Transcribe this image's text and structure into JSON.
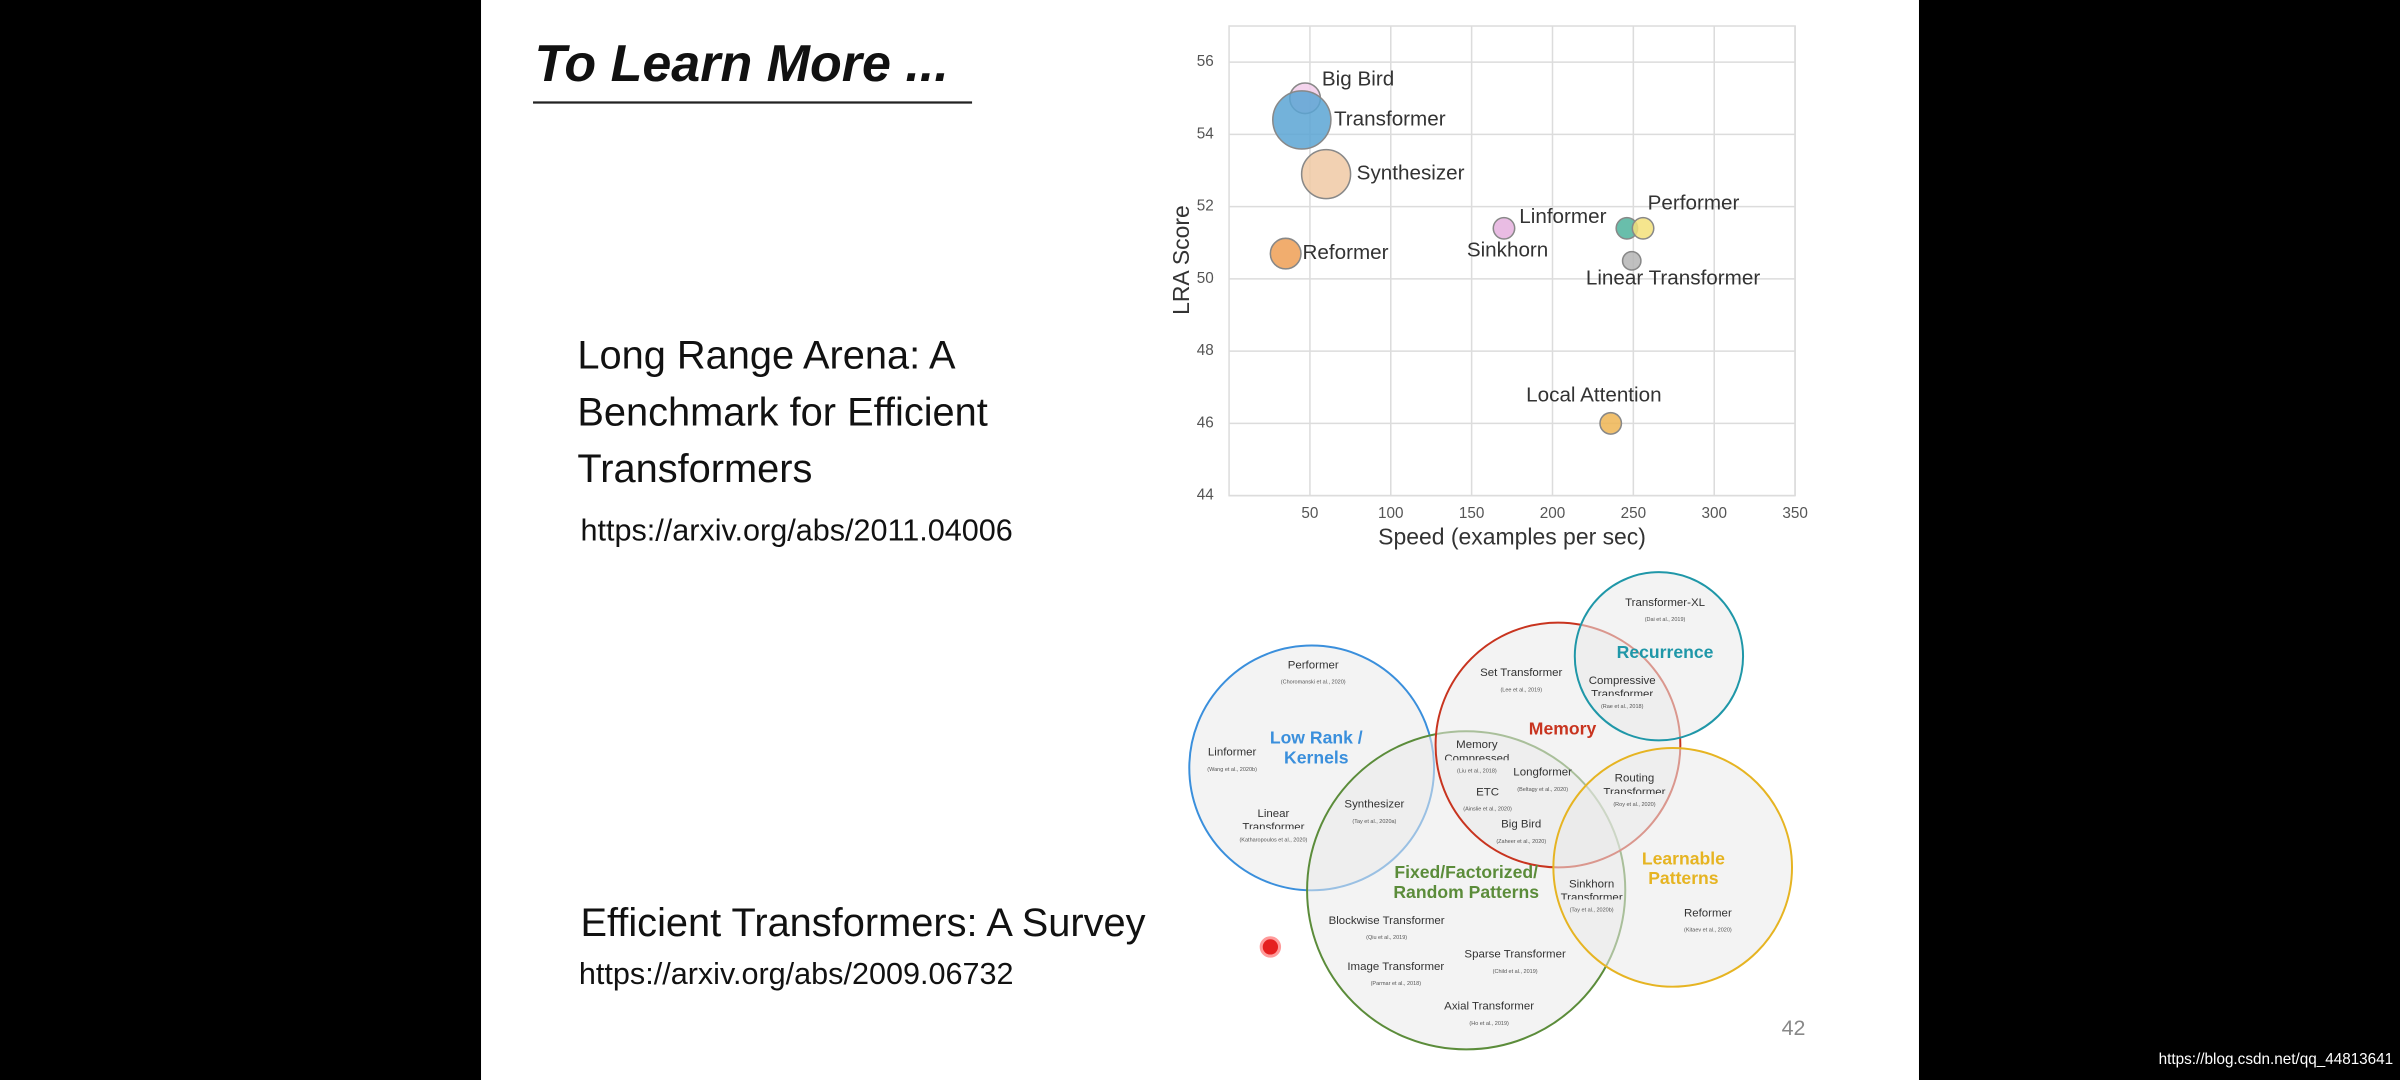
{
  "slide": {
    "title": "To Learn More ...",
    "page_number": "42",
    "papers": [
      {
        "title": "Long Range Arena: A Benchmark for Efficient Transformers",
        "url": "https://arxiv.org/abs/2011.04006"
      },
      {
        "title": "Efficient Transformers: A Survey",
        "url": "https://arxiv.org/abs/2009.06732"
      }
    ]
  },
  "chart_data": {
    "type": "scatter",
    "xlabel": "Speed (examples per sec)",
    "ylabel": "LRA Score",
    "xlim": [
      0,
      350
    ],
    "ylim": [
      44,
      57
    ],
    "xticks": [
      50,
      100,
      150,
      200,
      250,
      300,
      350
    ],
    "yticks": [
      44,
      46,
      48,
      50,
      52,
      54,
      56
    ],
    "grid": true,
    "points": [
      {
        "label": "Big Bird",
        "x": 47,
        "y": 55.0,
        "size": 10,
        "color": "#f2cdea"
      },
      {
        "label": "Transformer",
        "x": 45,
        "y": 54.4,
        "size": 19,
        "color": "#5aa5d4"
      },
      {
        "label": "Synthesizer",
        "x": 60,
        "y": 52.9,
        "size": 16,
        "color": "#f0c9a4"
      },
      {
        "label": "Reformer",
        "x": 35,
        "y": 50.7,
        "size": 10,
        "color": "#ee9f55"
      },
      {
        "label": "Linformer",
        "x": 170,
        "y": 51.4,
        "size": 7,
        "color": "#e5b0de"
      },
      {
        "label": "Sinkhorn",
        "x": 246,
        "y": 51.4,
        "size": 7,
        "color": "#4fb39c"
      },
      {
        "label": "Performer",
        "x": 256,
        "y": 51.4,
        "size": 7,
        "color": "#f3e17a"
      },
      {
        "label": "Linear Transformer",
        "x": 249,
        "y": 50.5,
        "size": 6,
        "color": "#b5b5b5"
      },
      {
        "label": "Local Attention",
        "x": 236,
        "y": 46.0,
        "size": 7,
        "color": "#efb553"
      }
    ]
  },
  "venn": {
    "circles": [
      {
        "label": "Low Rank / Kernels",
        "color": "#3a8fdc"
      },
      {
        "label": "Fixed/Factorized/ Random Patterns",
        "color": "#5b8c3a"
      },
      {
        "label": "Memory",
        "color": "#c8341f"
      },
      {
        "label": "Recurrence",
        "color": "#1f97a8"
      },
      {
        "label": "Learnable Patterns",
        "color": "#e6b422"
      }
    ],
    "items": [
      {
        "name": "Transformer-XL",
        "cite": "(Dai et al., 2019)"
      },
      {
        "name": "Compressive Transformer",
        "cite": "(Rae et al., 2018)"
      },
      {
        "name": "Set Transformer",
        "cite": "(Lee et al., 2019)"
      },
      {
        "name": "Performer",
        "cite": "(Choromanski et al., 2020)"
      },
      {
        "name": "Linformer",
        "cite": "(Wang et al., 2020b)"
      },
      {
        "name": "Memory Compressed",
        "cite": "(Liu et al., 2018)"
      },
      {
        "name": "Longformer",
        "cite": "(Beltagy et al., 2020)"
      },
      {
        "name": "ETC",
        "cite": "(Ainslie et al., 2020)"
      },
      {
        "name": "Routing Transformer",
        "cite": "(Roy et al., 2020)"
      },
      {
        "name": "Linear Transformer",
        "cite": "(Katharopoulos et al., 2020)"
      },
      {
        "name": "Synthesizer",
        "cite": "(Tay et al., 2020a)"
      },
      {
        "name": "Big Bird",
        "cite": "(Zaheer et al., 2020)"
      },
      {
        "name": "Sinkhorn Transformer",
        "cite": "(Tay et al., 2020b)"
      },
      {
        "name": "Reformer",
        "cite": "(Kitaev et al., 2020)"
      },
      {
        "name": "Blockwise Transformer",
        "cite": "(Qiu et al., 2019)"
      },
      {
        "name": "Sparse Transformer",
        "cite": "(Child et al., 2019)"
      },
      {
        "name": "Image Transformer",
        "cite": "(Parmar et al., 2018)"
      },
      {
        "name": "Axial Transformer",
        "cite": "(Ho et al., 2019)"
      }
    ]
  },
  "watermark": "https://blog.csdn.net/qq_44813641"
}
